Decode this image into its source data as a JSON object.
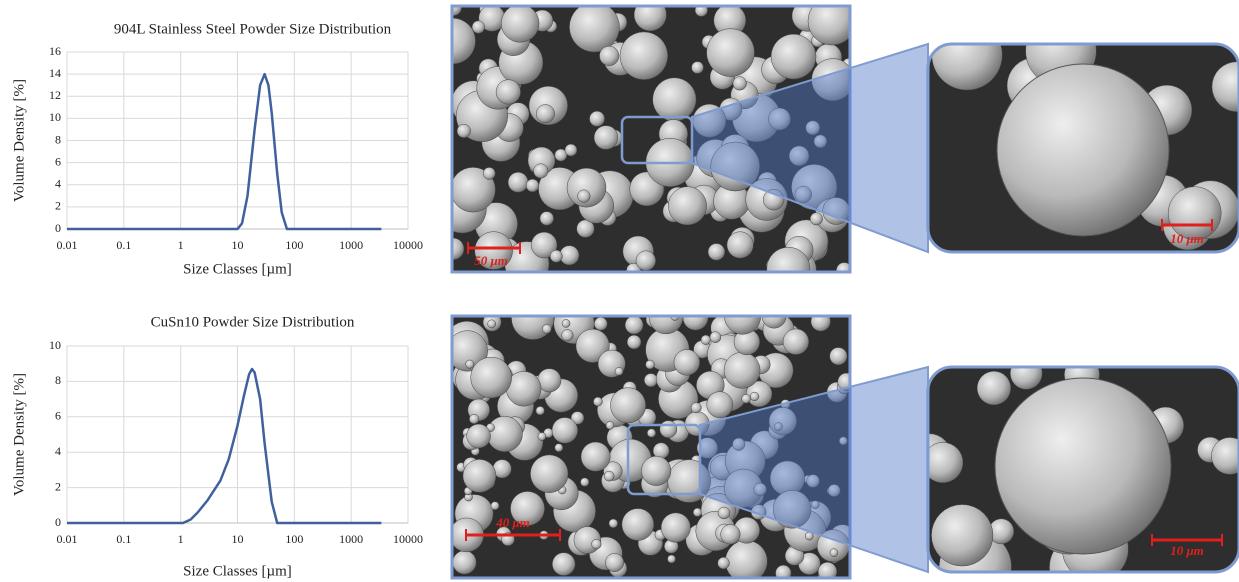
{
  "chart_data": [
    {
      "type": "line",
      "title": "904L Stainless Steel Powder Size Distribution",
      "x_label": "Size Classes [µm]",
      "y_label": "Volume Density [%]",
      "x": [
        0.01,
        10,
        12,
        15,
        20,
        25,
        30,
        35,
        40,
        50,
        60,
        74,
        3400
      ],
      "values": [
        0,
        0,
        0.5,
        3,
        9,
        13,
        14,
        13,
        10.5,
        5,
        1.5,
        0,
        0
      ],
      "color": "#41609e",
      "xscale": "log",
      "grid": true,
      "xlim": [
        0.01,
        10000
      ],
      "xticks": [
        0.01,
        0.1,
        1,
        10,
        100,
        1000,
        10000
      ],
      "ylim": [
        0,
        16
      ],
      "yticks": [
        0,
        2,
        4,
        6,
        8,
        10,
        12,
        14,
        16
      ]
    },
    {
      "type": "line",
      "title": "CuSn10 Powder Size Distribution",
      "x_label": "Size Classes [µm]",
      "y_label": "Volume Density [%]",
      "x": [
        0.01,
        1.1,
        1.5,
        2,
        3,
        5,
        7,
        10,
        13,
        16,
        18,
        20,
        25,
        30,
        40,
        50,
        3400
      ],
      "values": [
        0,
        0,
        0.2,
        0.6,
        1.3,
        2.4,
        3.6,
        5.5,
        7.2,
        8.4,
        8.7,
        8.5,
        7,
        4.5,
        1.2,
        0,
        0
      ],
      "color": "#41609e",
      "xscale": "log",
      "grid": true,
      "xlim": [
        0.01,
        10000
      ],
      "xticks": [
        0.01,
        0.1,
        1,
        10,
        100,
        1000,
        10000
      ],
      "ylim": [
        0,
        10
      ],
      "yticks": [
        0,
        2,
        4,
        6,
        8,
        10
      ]
    }
  ],
  "micrographs": [
    {
      "scale_bar": "50 μm"
    },
    {
      "scale_bar": "10 μm"
    },
    {
      "scale_bar": "40 μm"
    },
    {
      "scale_bar": "10 μm"
    }
  ]
}
